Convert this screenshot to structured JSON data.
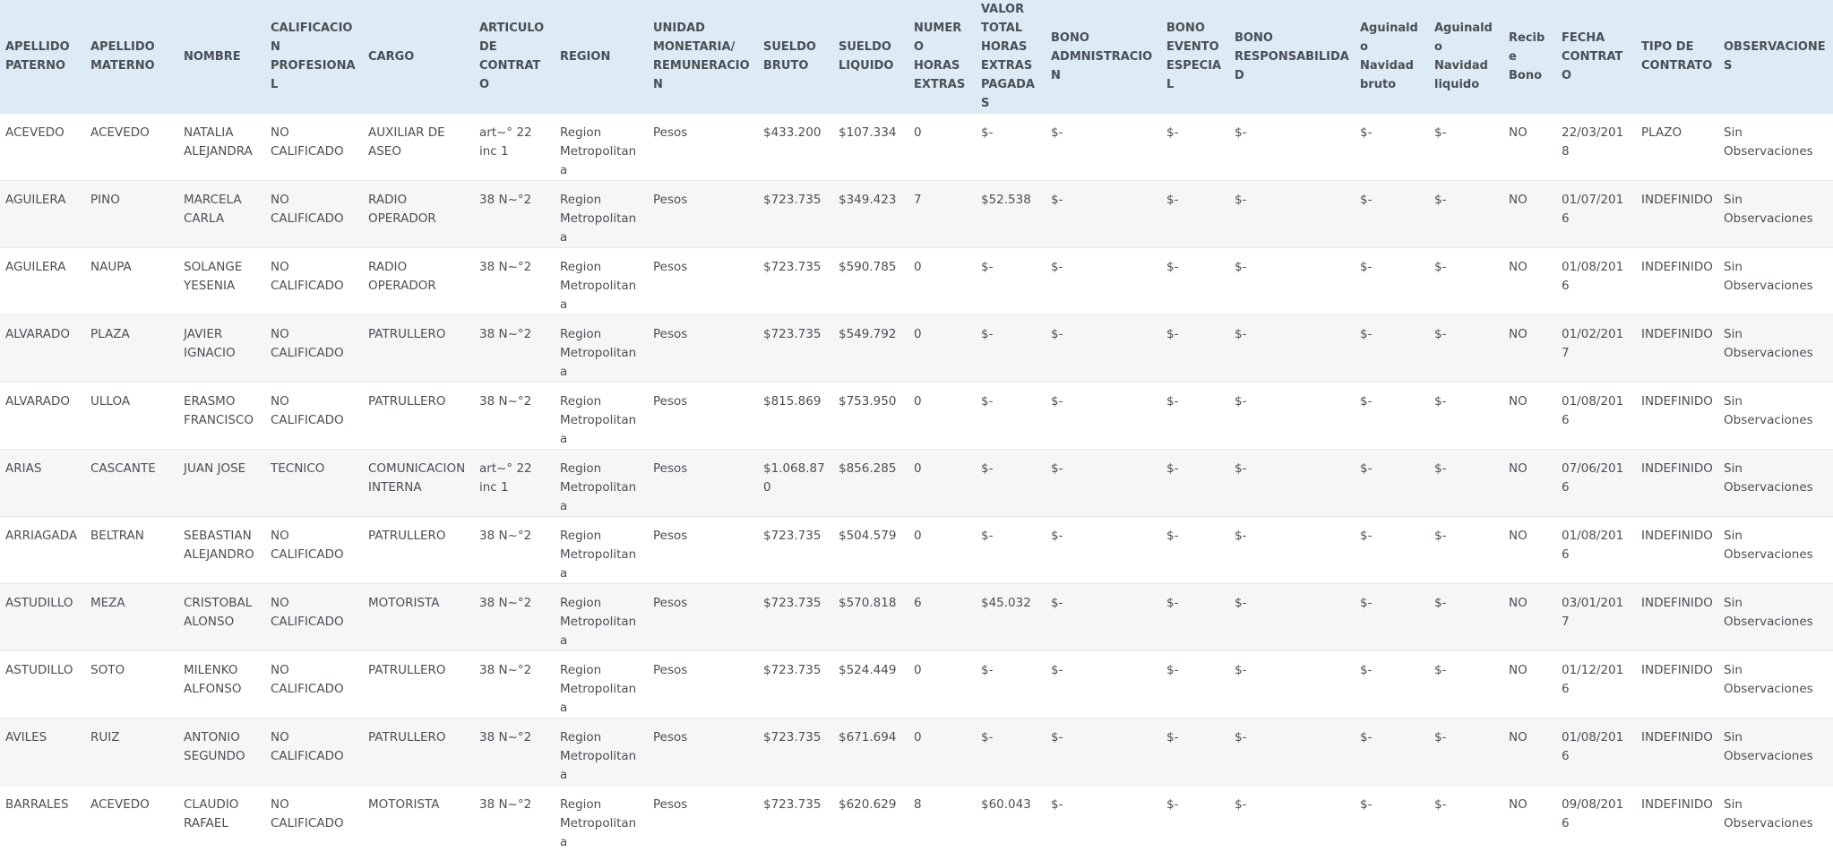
{
  "headers": [
    "APELLIDO PATERNO",
    "APELLIDO MATERNO",
    "NOMBRE",
    "CALIFICACION PROFESIONAL",
    "CARGO",
    "ARTICULO DE CONTRATO",
    "REGION",
    "UNIDAD MONETARIA/ REMUNERACION",
    "SUELDO BRUTO",
    "SUELDO LIQUIDO",
    "NUMERO HORAS EXTRAS",
    "VALOR TOTAL HORAS EXTRAS PAGADAS",
    "BONO ADMNISTRACION",
    "BONO EVENTO ESPECIAL",
    "BONO RESPONSABILIDAD",
    "Aguinaldo Navidad bruto",
    "Aguinaldo Navidad liquido",
    "Recibe Bono",
    "FECHA CONTRATO",
    "TIPO DE CONTRATO",
    "OBSERVACIONES"
  ],
  "rows": [
    [
      "ACEVEDO",
      "ACEVEDO",
      "NATALIA ALEJANDRA",
      "NO CALIFICADO",
      "AUXILIAR DE ASEO",
      "art~° 22 inc 1",
      "Region Metropolitana",
      "Pesos",
      "$433.200",
      "$107.334",
      "0",
      "$-",
      "$-",
      "$-",
      "$-",
      "$-",
      "$-",
      "NO",
      "22/03/2018",
      "PLAZO",
      "Sin Observaciones"
    ],
    [
      "AGUILERA",
      "PINO",
      "MARCELA CARLA",
      "NO CALIFICADO",
      "RADIO OPERADOR",
      "38 N~°2",
      "Region Metropolitana",
      "Pesos",
      "$723.735",
      "$349.423",
      "7",
      "$52.538",
      "$-",
      "$-",
      "$-",
      "$-",
      "$-",
      "NO",
      "01/07/2016",
      "INDEFINIDO",
      "Sin Observaciones"
    ],
    [
      "AGUILERA",
      "NAUPA",
      "SOLANGE YESENIA",
      "NO CALIFICADO",
      "RADIO OPERADOR",
      "38 N~°2",
      "Region Metropolitana",
      "Pesos",
      "$723.735",
      "$590.785",
      "0",
      "$-",
      "$-",
      "$-",
      "$-",
      "$-",
      "$-",
      "NO",
      "01/08/2016",
      "INDEFINIDO",
      "Sin Observaciones"
    ],
    [
      "ALVARADO",
      "PLAZA",
      "JAVIER IGNACIO",
      "NO CALIFICADO",
      "PATRULLERO",
      "38 N~°2",
      "Region Metropolitana",
      "Pesos",
      "$723.735",
      "$549.792",
      "0",
      "$-",
      "$-",
      "$-",
      "$-",
      "$-",
      "$-",
      "NO",
      "01/02/2017",
      "INDEFINIDO",
      "Sin Observaciones"
    ],
    [
      "ALVARADO",
      "ULLOA",
      "ERASMO FRANCISCO",
      "NO CALIFICADO",
      "PATRULLERO",
      "38 N~°2",
      "Region Metropolitana",
      "Pesos",
      "$815.869",
      "$753.950",
      "0",
      "$-",
      "$-",
      "$-",
      "$-",
      "$-",
      "$-",
      "NO",
      "01/08/2016",
      "INDEFINIDO",
      "Sin Observaciones"
    ],
    [
      "ARIAS",
      "CASCANTE",
      "JUAN JOSE",
      "TECNICO",
      "COMUNICACION INTERNA",
      "art~° 22 inc 1",
      "Region Metropolitana",
      "Pesos",
      "$1.068.870",
      "$856.285",
      "0",
      "$-",
      "$-",
      "$-",
      "$-",
      "$-",
      "$-",
      "NO",
      "07/06/2016",
      "INDEFINIDO",
      "Sin Observaciones"
    ],
    [
      "ARRIAGADA",
      "BELTRAN",
      "SEBASTIAN ALEJANDRO",
      "NO CALIFICADO",
      "PATRULLERO",
      "38 N~°2",
      "Region Metropolitana",
      "Pesos",
      "$723.735",
      "$504.579",
      "0",
      "$-",
      "$-",
      "$-",
      "$-",
      "$-",
      "$-",
      "NO",
      "01/08/2016",
      "INDEFINIDO",
      "Sin Observaciones"
    ],
    [
      "ASTUDILLO",
      "MEZA",
      "CRISTOBAL ALONSO",
      "NO CALIFICADO",
      "MOTORISTA",
      "38 N~°2",
      "Region Metropolitana",
      "Pesos",
      "$723.735",
      "$570.818",
      "6",
      "$45.032",
      "$-",
      "$-",
      "$-",
      "$-",
      "$-",
      "NO",
      "03/01/2017",
      "INDEFINIDO",
      "Sin Observaciones"
    ],
    [
      "ASTUDILLO",
      "SOTO",
      "MILENKO ALFONSO",
      "NO CALIFICADO",
      "PATRULLERO",
      "38 N~°2",
      "Region Metropolitana",
      "Pesos",
      "$723.735",
      "$524.449",
      "0",
      "$-",
      "$-",
      "$-",
      "$-",
      "$-",
      "$-",
      "NO",
      "01/12/2016",
      "INDEFINIDO",
      "Sin Observaciones"
    ],
    [
      "AVILES",
      "RUIZ",
      "ANTONIO SEGUNDO",
      "NO CALIFICADO",
      "PATRULLERO",
      "38 N~°2",
      "Region Metropolitana",
      "Pesos",
      "$723.735",
      "$671.694",
      "0",
      "$-",
      "$-",
      "$-",
      "$-",
      "$-",
      "$-",
      "NO",
      "01/08/2016",
      "INDEFINIDO",
      "Sin Observaciones"
    ],
    [
      "BARRALES",
      "ACEVEDO",
      "CLAUDIO RAFAEL",
      "NO CALIFICADO",
      "MOTORISTA",
      "38 N~°2",
      "Region Metropolitana",
      "Pesos",
      "$723.735",
      "$620.629",
      "8",
      "$60.043",
      "$-",
      "$-",
      "$-",
      "$-",
      "$-",
      "NO",
      "09/08/2016",
      "INDEFINIDO",
      "Sin Observaciones"
    ]
  ]
}
